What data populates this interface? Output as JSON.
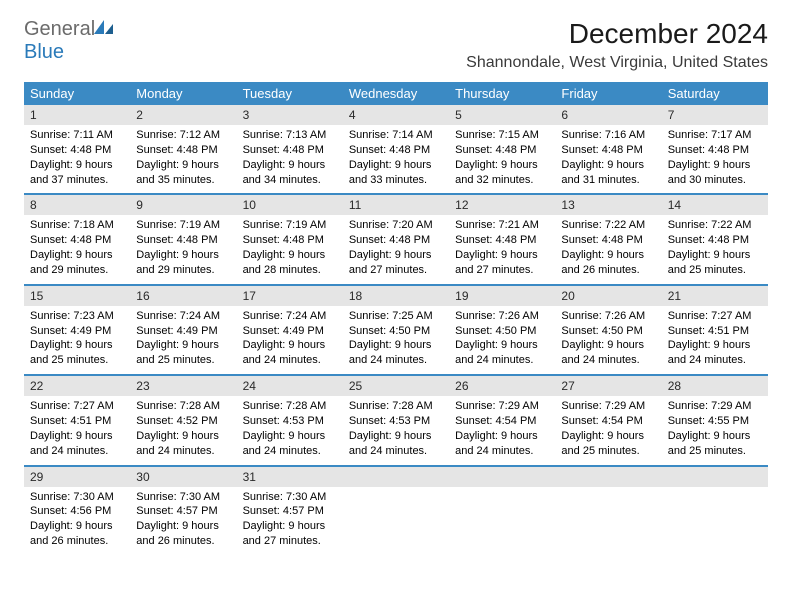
{
  "logo": {
    "word1": "General",
    "word2": "Blue"
  },
  "title": "December 2024",
  "location": "Shannondale, West Virginia, United States",
  "colors": {
    "header_bg": "#3b8ac4",
    "header_text": "#ffffff",
    "num_bg": "#e5e5e5",
    "divider": "#3b8ac4",
    "logo_gray": "#6b6b6b",
    "logo_blue": "#2a7ab9"
  },
  "day_names": [
    "Sunday",
    "Monday",
    "Tuesday",
    "Wednesday",
    "Thursday",
    "Friday",
    "Saturday"
  ],
  "days": [
    {
      "n": "1",
      "sunrise": "Sunrise: 7:11 AM",
      "sunset": "Sunset: 4:48 PM",
      "day1": "Daylight: 9 hours",
      "day2": "and 37 minutes."
    },
    {
      "n": "2",
      "sunrise": "Sunrise: 7:12 AM",
      "sunset": "Sunset: 4:48 PM",
      "day1": "Daylight: 9 hours",
      "day2": "and 35 minutes."
    },
    {
      "n": "3",
      "sunrise": "Sunrise: 7:13 AM",
      "sunset": "Sunset: 4:48 PM",
      "day1": "Daylight: 9 hours",
      "day2": "and 34 minutes."
    },
    {
      "n": "4",
      "sunrise": "Sunrise: 7:14 AM",
      "sunset": "Sunset: 4:48 PM",
      "day1": "Daylight: 9 hours",
      "day2": "and 33 minutes."
    },
    {
      "n": "5",
      "sunrise": "Sunrise: 7:15 AM",
      "sunset": "Sunset: 4:48 PM",
      "day1": "Daylight: 9 hours",
      "day2": "and 32 minutes."
    },
    {
      "n": "6",
      "sunrise": "Sunrise: 7:16 AM",
      "sunset": "Sunset: 4:48 PM",
      "day1": "Daylight: 9 hours",
      "day2": "and 31 minutes."
    },
    {
      "n": "7",
      "sunrise": "Sunrise: 7:17 AM",
      "sunset": "Sunset: 4:48 PM",
      "day1": "Daylight: 9 hours",
      "day2": "and 30 minutes."
    },
    {
      "n": "8",
      "sunrise": "Sunrise: 7:18 AM",
      "sunset": "Sunset: 4:48 PM",
      "day1": "Daylight: 9 hours",
      "day2": "and 29 minutes."
    },
    {
      "n": "9",
      "sunrise": "Sunrise: 7:19 AM",
      "sunset": "Sunset: 4:48 PM",
      "day1": "Daylight: 9 hours",
      "day2": "and 29 minutes."
    },
    {
      "n": "10",
      "sunrise": "Sunrise: 7:19 AM",
      "sunset": "Sunset: 4:48 PM",
      "day1": "Daylight: 9 hours",
      "day2": "and 28 minutes."
    },
    {
      "n": "11",
      "sunrise": "Sunrise: 7:20 AM",
      "sunset": "Sunset: 4:48 PM",
      "day1": "Daylight: 9 hours",
      "day2": "and 27 minutes."
    },
    {
      "n": "12",
      "sunrise": "Sunrise: 7:21 AM",
      "sunset": "Sunset: 4:48 PM",
      "day1": "Daylight: 9 hours",
      "day2": "and 27 minutes."
    },
    {
      "n": "13",
      "sunrise": "Sunrise: 7:22 AM",
      "sunset": "Sunset: 4:48 PM",
      "day1": "Daylight: 9 hours",
      "day2": "and 26 minutes."
    },
    {
      "n": "14",
      "sunrise": "Sunrise: 7:22 AM",
      "sunset": "Sunset: 4:48 PM",
      "day1": "Daylight: 9 hours",
      "day2": "and 25 minutes."
    },
    {
      "n": "15",
      "sunrise": "Sunrise: 7:23 AM",
      "sunset": "Sunset: 4:49 PM",
      "day1": "Daylight: 9 hours",
      "day2": "and 25 minutes."
    },
    {
      "n": "16",
      "sunrise": "Sunrise: 7:24 AM",
      "sunset": "Sunset: 4:49 PM",
      "day1": "Daylight: 9 hours",
      "day2": "and 25 minutes."
    },
    {
      "n": "17",
      "sunrise": "Sunrise: 7:24 AM",
      "sunset": "Sunset: 4:49 PM",
      "day1": "Daylight: 9 hours",
      "day2": "and 24 minutes."
    },
    {
      "n": "18",
      "sunrise": "Sunrise: 7:25 AM",
      "sunset": "Sunset: 4:50 PM",
      "day1": "Daylight: 9 hours",
      "day2": "and 24 minutes."
    },
    {
      "n": "19",
      "sunrise": "Sunrise: 7:26 AM",
      "sunset": "Sunset: 4:50 PM",
      "day1": "Daylight: 9 hours",
      "day2": "and 24 minutes."
    },
    {
      "n": "20",
      "sunrise": "Sunrise: 7:26 AM",
      "sunset": "Sunset: 4:50 PM",
      "day1": "Daylight: 9 hours",
      "day2": "and 24 minutes."
    },
    {
      "n": "21",
      "sunrise": "Sunrise: 7:27 AM",
      "sunset": "Sunset: 4:51 PM",
      "day1": "Daylight: 9 hours",
      "day2": "and 24 minutes."
    },
    {
      "n": "22",
      "sunrise": "Sunrise: 7:27 AM",
      "sunset": "Sunset: 4:51 PM",
      "day1": "Daylight: 9 hours",
      "day2": "and 24 minutes."
    },
    {
      "n": "23",
      "sunrise": "Sunrise: 7:28 AM",
      "sunset": "Sunset: 4:52 PM",
      "day1": "Daylight: 9 hours",
      "day2": "and 24 minutes."
    },
    {
      "n": "24",
      "sunrise": "Sunrise: 7:28 AM",
      "sunset": "Sunset: 4:53 PM",
      "day1": "Daylight: 9 hours",
      "day2": "and 24 minutes."
    },
    {
      "n": "25",
      "sunrise": "Sunrise: 7:28 AM",
      "sunset": "Sunset: 4:53 PM",
      "day1": "Daylight: 9 hours",
      "day2": "and 24 minutes."
    },
    {
      "n": "26",
      "sunrise": "Sunrise: 7:29 AM",
      "sunset": "Sunset: 4:54 PM",
      "day1": "Daylight: 9 hours",
      "day2": "and 24 minutes."
    },
    {
      "n": "27",
      "sunrise": "Sunrise: 7:29 AM",
      "sunset": "Sunset: 4:54 PM",
      "day1": "Daylight: 9 hours",
      "day2": "and 25 minutes."
    },
    {
      "n": "28",
      "sunrise": "Sunrise: 7:29 AM",
      "sunset": "Sunset: 4:55 PM",
      "day1": "Daylight: 9 hours",
      "day2": "and 25 minutes."
    },
    {
      "n": "29",
      "sunrise": "Sunrise: 7:30 AM",
      "sunset": "Sunset: 4:56 PM",
      "day1": "Daylight: 9 hours",
      "day2": "and 26 minutes."
    },
    {
      "n": "30",
      "sunrise": "Sunrise: 7:30 AM",
      "sunset": "Sunset: 4:57 PM",
      "day1": "Daylight: 9 hours",
      "day2": "and 26 minutes."
    },
    {
      "n": "31",
      "sunrise": "Sunrise: 7:30 AM",
      "sunset": "Sunset: 4:57 PM",
      "day1": "Daylight: 9 hours",
      "day2": "and 27 minutes."
    }
  ],
  "layout": {
    "columns": 7,
    "trailing_empty_cells": 4,
    "cell_font_size": 11,
    "header_font_size": 13,
    "title_font_size": 28,
    "location_font_size": 16
  }
}
